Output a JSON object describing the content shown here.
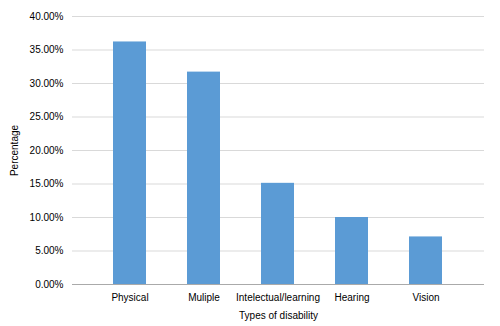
{
  "chart_data": {
    "type": "bar",
    "categories": [
      "Physical",
      "Muliple",
      "Intelectual/learning",
      "Hearing",
      "Vision"
    ],
    "values": [
      36.2,
      31.7,
      15.1,
      10.0,
      7.1
    ],
    "color": "#5B9BD5",
    "xlabel": "Types of disability",
    "ylabel": "Percentage",
    "ylim": [
      0,
      40
    ],
    "yticks": [
      {
        "value": 0,
        "label": "0.00%"
      },
      {
        "value": 5,
        "label": "5.00%"
      },
      {
        "value": 10,
        "label": "10.00%"
      },
      {
        "value": 15,
        "label": "15.00%"
      },
      {
        "value": 20,
        "label": "20.00%"
      },
      {
        "value": 25,
        "label": "25.00%"
      },
      {
        "value": 30,
        "label": "30.00%"
      },
      {
        "value": 35,
        "label": "35.00%"
      },
      {
        "value": 40,
        "label": "40.00%"
      }
    ],
    "grid": true
  }
}
